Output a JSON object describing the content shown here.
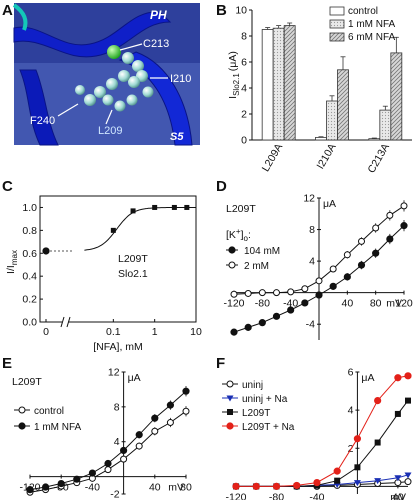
{
  "figure": {
    "panel_labels": [
      "A",
      "B",
      "C",
      "D",
      "E",
      "F"
    ],
    "colors": {
      "red": "#e32119",
      "blue": "#1a2fb4",
      "black": "#111111",
      "structure_bg": "#3b4fa8"
    }
  },
  "panel_a": {
    "labels": {
      "ph": "PH",
      "s5": "S5",
      "c213": "C213",
      "i210": "I210",
      "f240": "F240",
      "l209": "L209"
    }
  },
  "chart_data": [
    {
      "panel": "B",
      "type": "bar",
      "ylabel_main": "I",
      "ylabel_sub": "Slo2.1",
      "ylabel_unit": "(μA)",
      "yticks": [
        "0",
        "2",
        "4",
        "6",
        "8",
        "10"
      ],
      "ylim": [
        0,
        10
      ],
      "categories": [
        "L209A",
        "I210A",
        "C213A"
      ],
      "series": [
        {
          "name": "control",
          "values": [
            8.5,
            0.2,
            0.1
          ]
        },
        {
          "name": "1 mM NFA",
          "values": [
            8.6,
            3.0,
            2.3
          ]
        },
        {
          "name": "6 mM NFA",
          "values": [
            8.8,
            5.4,
            6.7
          ]
        }
      ],
      "errors": [
        [
          0.15,
          0.05,
          0.05
        ],
        [
          0.2,
          0.4,
          0.3
        ],
        [
          0.2,
          1.0,
          1.2
        ]
      ]
    },
    {
      "panel": "C",
      "type": "scatter",
      "ylabel_main": "I/I",
      "ylabel_sub": "max",
      "xlabel": "[NFA], mM",
      "xticks": [
        "0",
        "0.1",
        "1",
        "10"
      ],
      "yticks": [
        "0.0",
        "0.2",
        "0.4",
        "0.6",
        "0.8",
        "1.0"
      ],
      "xscale": "log",
      "xlim": [
        0.01,
        10
      ],
      "ylim": [
        0,
        1.1
      ],
      "zero_point": {
        "x": 0,
        "y": 0.62
      },
      "x": [
        0.02,
        0.1,
        0.3,
        1,
        3,
        6
      ],
      "y": [
        0.62,
        0.8,
        0.97,
        1.0,
        1.0,
        1.0
      ],
      "annotation": [
        "L209T",
        "Slo2.1"
      ]
    },
    {
      "panel": "D",
      "type": "line",
      "title": "L209T",
      "legend_title_main": "[K",
      "legend_title_sup": "+",
      "legend_title_tail": "]",
      "legend_title_sub": "o",
      "legend_title_colon": ":",
      "yunit": "μA",
      "xunit": "mV",
      "xticks": [
        "-120",
        "-80",
        "-40",
        "40",
        "80",
        "120"
      ],
      "yticks": [
        "-4",
        "4",
        "8",
        "12"
      ],
      "xlim": [
        -120,
        120
      ],
      "ylim": [
        -6,
        12
      ],
      "x": [
        -120,
        -100,
        -80,
        -60,
        -40,
        -20,
        0,
        20,
        40,
        60,
        80,
        100,
        120
      ],
      "series": [
        {
          "name": "104 mM",
          "marker": "filled",
          "y": [
            -5.0,
            -4.4,
            -3.8,
            -3.0,
            -2.2,
            -1.3,
            -0.3,
            0.8,
            2.0,
            3.5,
            5.0,
            6.8,
            8.5
          ]
        },
        {
          "name": "2 mM",
          "marker": "open",
          "y": [
            -0.2,
            -0.1,
            0,
            0,
            0.1,
            0.5,
            1.5,
            3.0,
            4.8,
            6.5,
            8.2,
            9.8,
            11.0
          ]
        }
      ]
    },
    {
      "panel": "E",
      "type": "line",
      "title": "L209T",
      "yunit": "μA",
      "xunit": "mV",
      "xticks": [
        "-120",
        "-80",
        "-40",
        "40",
        "80"
      ],
      "yticks": [
        "-2",
        "4",
        "8",
        "12"
      ],
      "xlim": [
        -120,
        80
      ],
      "ylim": [
        -2,
        12
      ],
      "x": [
        -120,
        -100,
        -80,
        -60,
        -40,
        -20,
        0,
        20,
        40,
        60,
        80
      ],
      "series": [
        {
          "name": "control",
          "marker": "open",
          "y": [
            -1.8,
            -1.5,
            -1.1,
            -0.7,
            -0.2,
            0.8,
            2.0,
            3.5,
            5.2,
            6.2,
            7.5
          ]
        },
        {
          "name": "1 mM NFA",
          "marker": "filled",
          "y": [
            -1.5,
            -1.2,
            -0.8,
            -0.3,
            0.4,
            1.5,
            3.0,
            4.8,
            6.7,
            8.2,
            9.8
          ]
        }
      ]
    },
    {
      "panel": "F",
      "type": "line",
      "yunit": "μA",
      "xunit": "mV",
      "xticks": [
        "-120",
        "-80",
        "-40",
        "40"
      ],
      "yticks": [
        "2",
        "4",
        "6"
      ],
      "xlim": [
        -120,
        50
      ],
      "ylim": [
        -0.4,
        6
      ],
      "x": [
        -120,
        -100,
        -80,
        -60,
        -40,
        -20,
        0,
        20,
        40,
        50
      ],
      "series": [
        {
          "name": "uninj",
          "color": "#111111",
          "marker": "open-circle",
          "y": [
            0,
            0,
            0,
            0,
            0,
            0.05,
            0.1,
            0.15,
            0.2,
            0.25
          ]
        },
        {
          "name": "uninj + Na",
          "color": "#1a2fb4",
          "marker": "triangle",
          "y": [
            0,
            0,
            0,
            0,
            0.05,
            0.1,
            0.2,
            0.3,
            0.45,
            0.6
          ]
        },
        {
          "name": "L209T",
          "color": "#111111",
          "marker": "square",
          "y": [
            0,
            0,
            0,
            0,
            0.05,
            0.3,
            1.0,
            2.3,
            3.8,
            4.5
          ]
        },
        {
          "name": "L209T + Na",
          "color": "#e32119",
          "marker": "filled-circle",
          "y": [
            0,
            0,
            0,
            0.05,
            0.2,
            0.8,
            2.5,
            4.5,
            5.7,
            5.8
          ]
        }
      ]
    }
  ]
}
